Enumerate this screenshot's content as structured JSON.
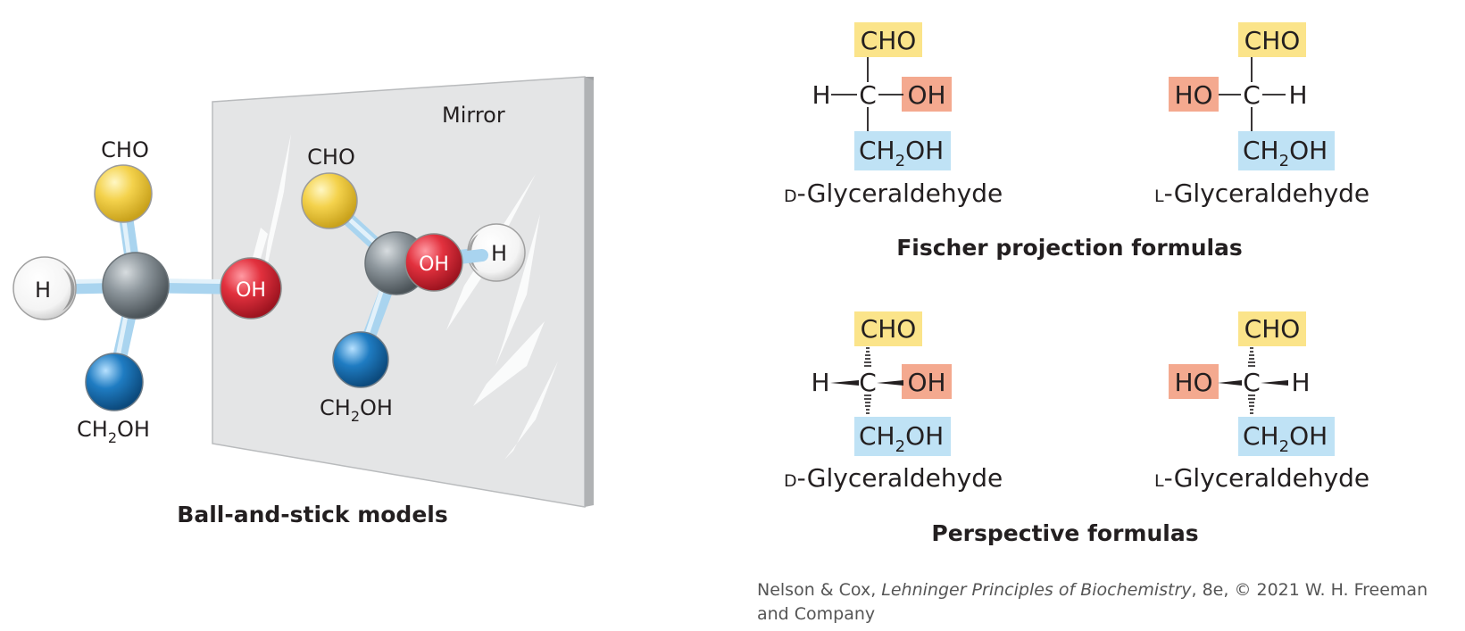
{
  "colors": {
    "cho": "#fbe48a",
    "oh": "#f4a98f",
    "ch2oh": "#bfe2f5",
    "carbon_ball": "#8e979d",
    "cho_ball": "#f4d24c",
    "oh_ball": "#e2313e",
    "ch2oh_ball": "#1f7cc2",
    "stick": "#a9d4ef",
    "mirror": "#e4e5e6"
  },
  "ball_and_stick": {
    "title": "Ball-and-stick models",
    "mirror_label": "Mirror",
    "left_model": {
      "cho": "CHO",
      "h": "H",
      "oh": "OH",
      "ch2oh_main": "CH",
      "ch2oh_sub": "2",
      "ch2oh_end": "OH"
    },
    "right_model": {
      "cho": "CHO",
      "h": "H",
      "oh": "OH",
      "ch2oh_main": "CH",
      "ch2oh_sub": "2",
      "ch2oh_end": "OH"
    }
  },
  "fischer": {
    "title": "Fischer projection formulas",
    "d_form": {
      "top": "CHO",
      "left": "H",
      "center": "C",
      "right": "OH",
      "bottom_main": "CH",
      "bottom_sub": "2",
      "bottom_end": "OH",
      "name_prefix": "D",
      "name": "-Glyceraldehyde"
    },
    "l_form": {
      "top": "CHO",
      "left": "HO",
      "center": "C",
      "right": "H",
      "bottom_main": "CH",
      "bottom_sub": "2",
      "bottom_end": "OH",
      "name_prefix": "L",
      "name": "-Glyceraldehyde"
    }
  },
  "perspective": {
    "title": "Perspective formulas",
    "d_form": {
      "top": "CHO",
      "left": "H",
      "center": "C",
      "right": "OH",
      "bottom_main": "CH",
      "bottom_sub": "2",
      "bottom_end": "OH",
      "name_prefix": "D",
      "name": "-Glyceraldehyde"
    },
    "l_form": {
      "top": "CHO",
      "left": "HO",
      "center": "C",
      "right": "H",
      "bottom_main": "CH",
      "bottom_sub": "2",
      "bottom_end": "OH",
      "name_prefix": "L",
      "name": "-Glyceraldehyde"
    }
  },
  "credit": {
    "authors": "Nelson & Cox, ",
    "book": "Lehninger Principles of Biochemistry",
    "rest": ", 8e, © 2021 W. H. Freeman and Company"
  }
}
